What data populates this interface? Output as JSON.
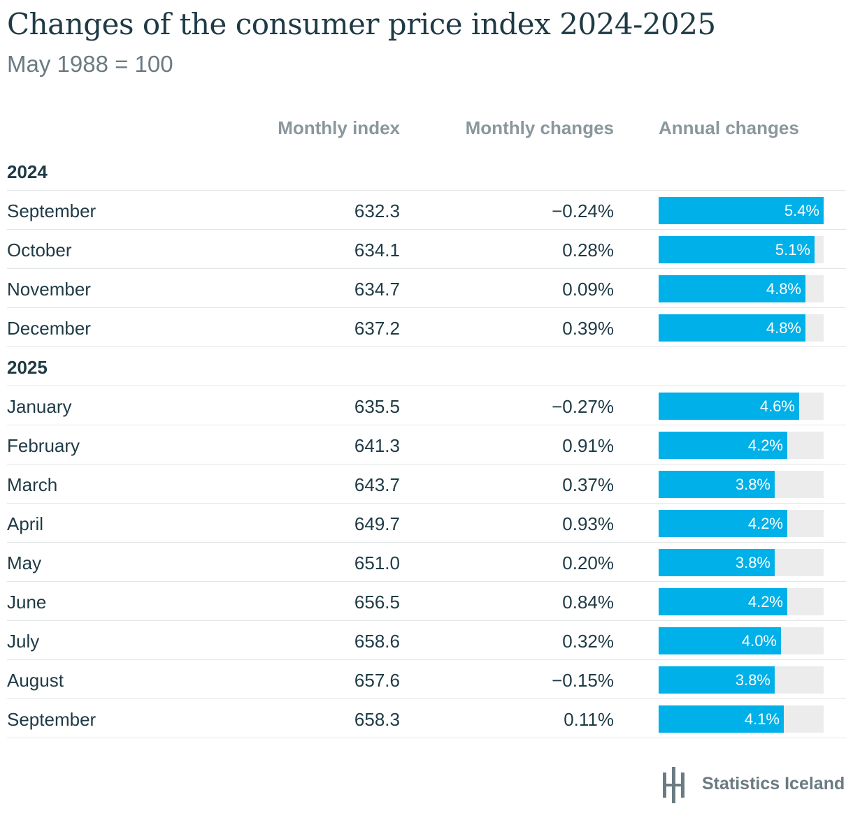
{
  "title": "Changes of the consumer price index 2024-2025",
  "subtitle": "May 1988 = 100",
  "columns": {
    "index": "Monthly index",
    "monthly": "Monthly changes",
    "annual": "Annual changes"
  },
  "brand": "Statistics Iceland",
  "colors": {
    "bar": "#00b0e8",
    "track": "#ececec",
    "text": "#1e3a45",
    "header": "#8a979c"
  },
  "chart_data": {
    "type": "table",
    "bar_max": 5.4,
    "groups": [
      {
        "year": "2024",
        "rows": [
          {
            "month": "September",
            "index": "632.3",
            "monthly": "−0.24%",
            "annual": 5.4,
            "annual_label": "5.4%"
          },
          {
            "month": "October",
            "index": "634.1",
            "monthly": "0.28%",
            "annual": 5.1,
            "annual_label": "5.1%"
          },
          {
            "month": "November",
            "index": "634.7",
            "monthly": "0.09%",
            "annual": 4.8,
            "annual_label": "4.8%"
          },
          {
            "month": "December",
            "index": "637.2",
            "monthly": "0.39%",
            "annual": 4.8,
            "annual_label": "4.8%"
          }
        ]
      },
      {
        "year": "2025",
        "rows": [
          {
            "month": "January",
            "index": "635.5",
            "monthly": "−0.27%",
            "annual": 4.6,
            "annual_label": "4.6%"
          },
          {
            "month": "February",
            "index": "641.3",
            "monthly": "0.91%",
            "annual": 4.2,
            "annual_label": "4.2%"
          },
          {
            "month": "March",
            "index": "643.7",
            "monthly": "0.37%",
            "annual": 3.8,
            "annual_label": "3.8%"
          },
          {
            "month": "April",
            "index": "649.7",
            "monthly": "0.93%",
            "annual": 4.2,
            "annual_label": "4.2%"
          },
          {
            "month": "May",
            "index": "651.0",
            "monthly": "0.20%",
            "annual": 3.8,
            "annual_label": "3.8%"
          },
          {
            "month": "June",
            "index": "656.5",
            "monthly": "0.84%",
            "annual": 4.2,
            "annual_label": "4.2%"
          },
          {
            "month": "July",
            "index": "658.6",
            "monthly": "0.32%",
            "annual": 4.0,
            "annual_label": "4.0%"
          },
          {
            "month": "August",
            "index": "657.6",
            "monthly": "−0.15%",
            "annual": 3.8,
            "annual_label": "3.8%"
          },
          {
            "month": "September",
            "index": "658.3",
            "monthly": "0.11%",
            "annual": 4.1,
            "annual_label": "4.1%"
          }
        ]
      }
    ]
  }
}
